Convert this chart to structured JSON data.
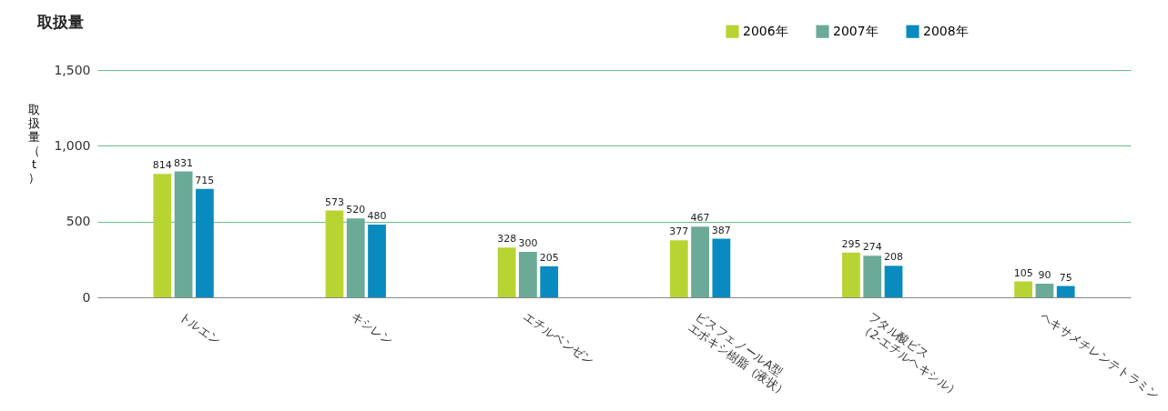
{
  "chart_data": {
    "type": "bar",
    "title": "取扱量",
    "ylabel": "取扱量（t）",
    "categories": [
      "トルエン",
      "キシレン",
      "エチルベンゼン",
      "ビスフェノールA型\nエポキシ樹脂（液状）",
      "フタル酸ビス\n（2-エチルヘキシル）",
      "ヘキサメチレンテトラミン"
    ],
    "series": [
      {
        "name": "2006年",
        "color": "#b8d433",
        "values": [
          814,
          573,
          328,
          377,
          295,
          105
        ]
      },
      {
        "name": "2007年",
        "color": "#6aaa96",
        "values": [
          831,
          520,
          300,
          467,
          274,
          90
        ]
      },
      {
        "name": "2008年",
        "color": "#0a8bbf",
        "values": [
          715,
          480,
          205,
          387,
          208,
          75
        ]
      }
    ],
    "ylim": [
      0,
      1500
    ],
    "yticks": [
      0,
      500,
      {
        "value": 1000,
        "label": "1,000"
      },
      {
        "value": 1500,
        "label": "1,500"
      }
    ],
    "grid": "y",
    "legend": "top right",
    "data_labels": true
  }
}
